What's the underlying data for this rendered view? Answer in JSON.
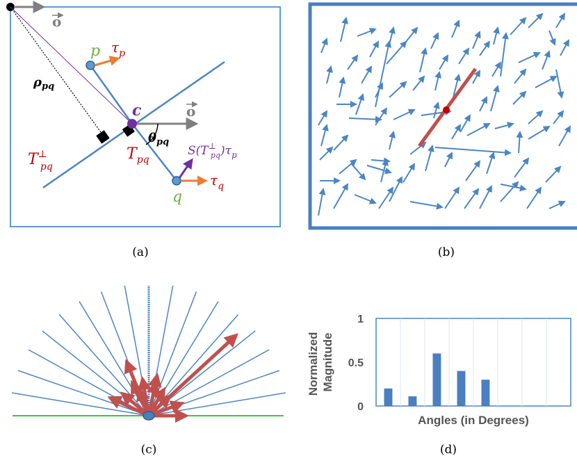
{
  "colors": {
    "frame": "#5b9bd5",
    "line": "#4a86c4",
    "gray": "#808080",
    "red": "#c00000",
    "orange": "#ed7d31",
    "purple": "#7030a0",
    "green": "#70ad47",
    "darkred": "#c0504d",
    "bar": "#4a7fc1",
    "brightgreen": "#33cc33"
  },
  "panels": {
    "a": {
      "caption": "(a)",
      "labels": {
        "o_top": "o",
        "o_mid": "o",
        "p": "p",
        "tau_p": "τ",
        "tau_p_sub": "p",
        "rho": "ρ",
        "rho_sub": "pq",
        "c": "c",
        "theta": "θ",
        "theta_sub": "pq",
        "s_main": "S(T",
        "s_sup": "⊥",
        "s_sub": "pq",
        "s_tail": ")τ",
        "s_tail_sub": "p",
        "t_perp": "T",
        "t_perp_sup": "⊥",
        "t_perp_sub": "pq",
        "t_pq": "T",
        "t_pq_sub": "pq",
        "q": "q",
        "tau_q": "τ",
        "tau_q_sub": "q"
      }
    },
    "b": {
      "caption": "(b)"
    },
    "c": {
      "caption": "(c)"
    },
    "d": {
      "caption": "(d)"
    }
  },
  "chart_data": {
    "type": "bar",
    "categories": [
      "",
      "",
      "",
      "",
      "",
      "",
      "",
      ""
    ],
    "values": [
      0.2,
      0.11,
      0.6,
      0.4,
      0.3,
      0,
      0,
      0
    ],
    "xlabel": "Angles (in Degrees)",
    "ylabel": "Normalized Magnitude",
    "yticks": [
      "0",
      "0.5",
      "1"
    ],
    "ylim": [
      0,
      1
    ]
  }
}
